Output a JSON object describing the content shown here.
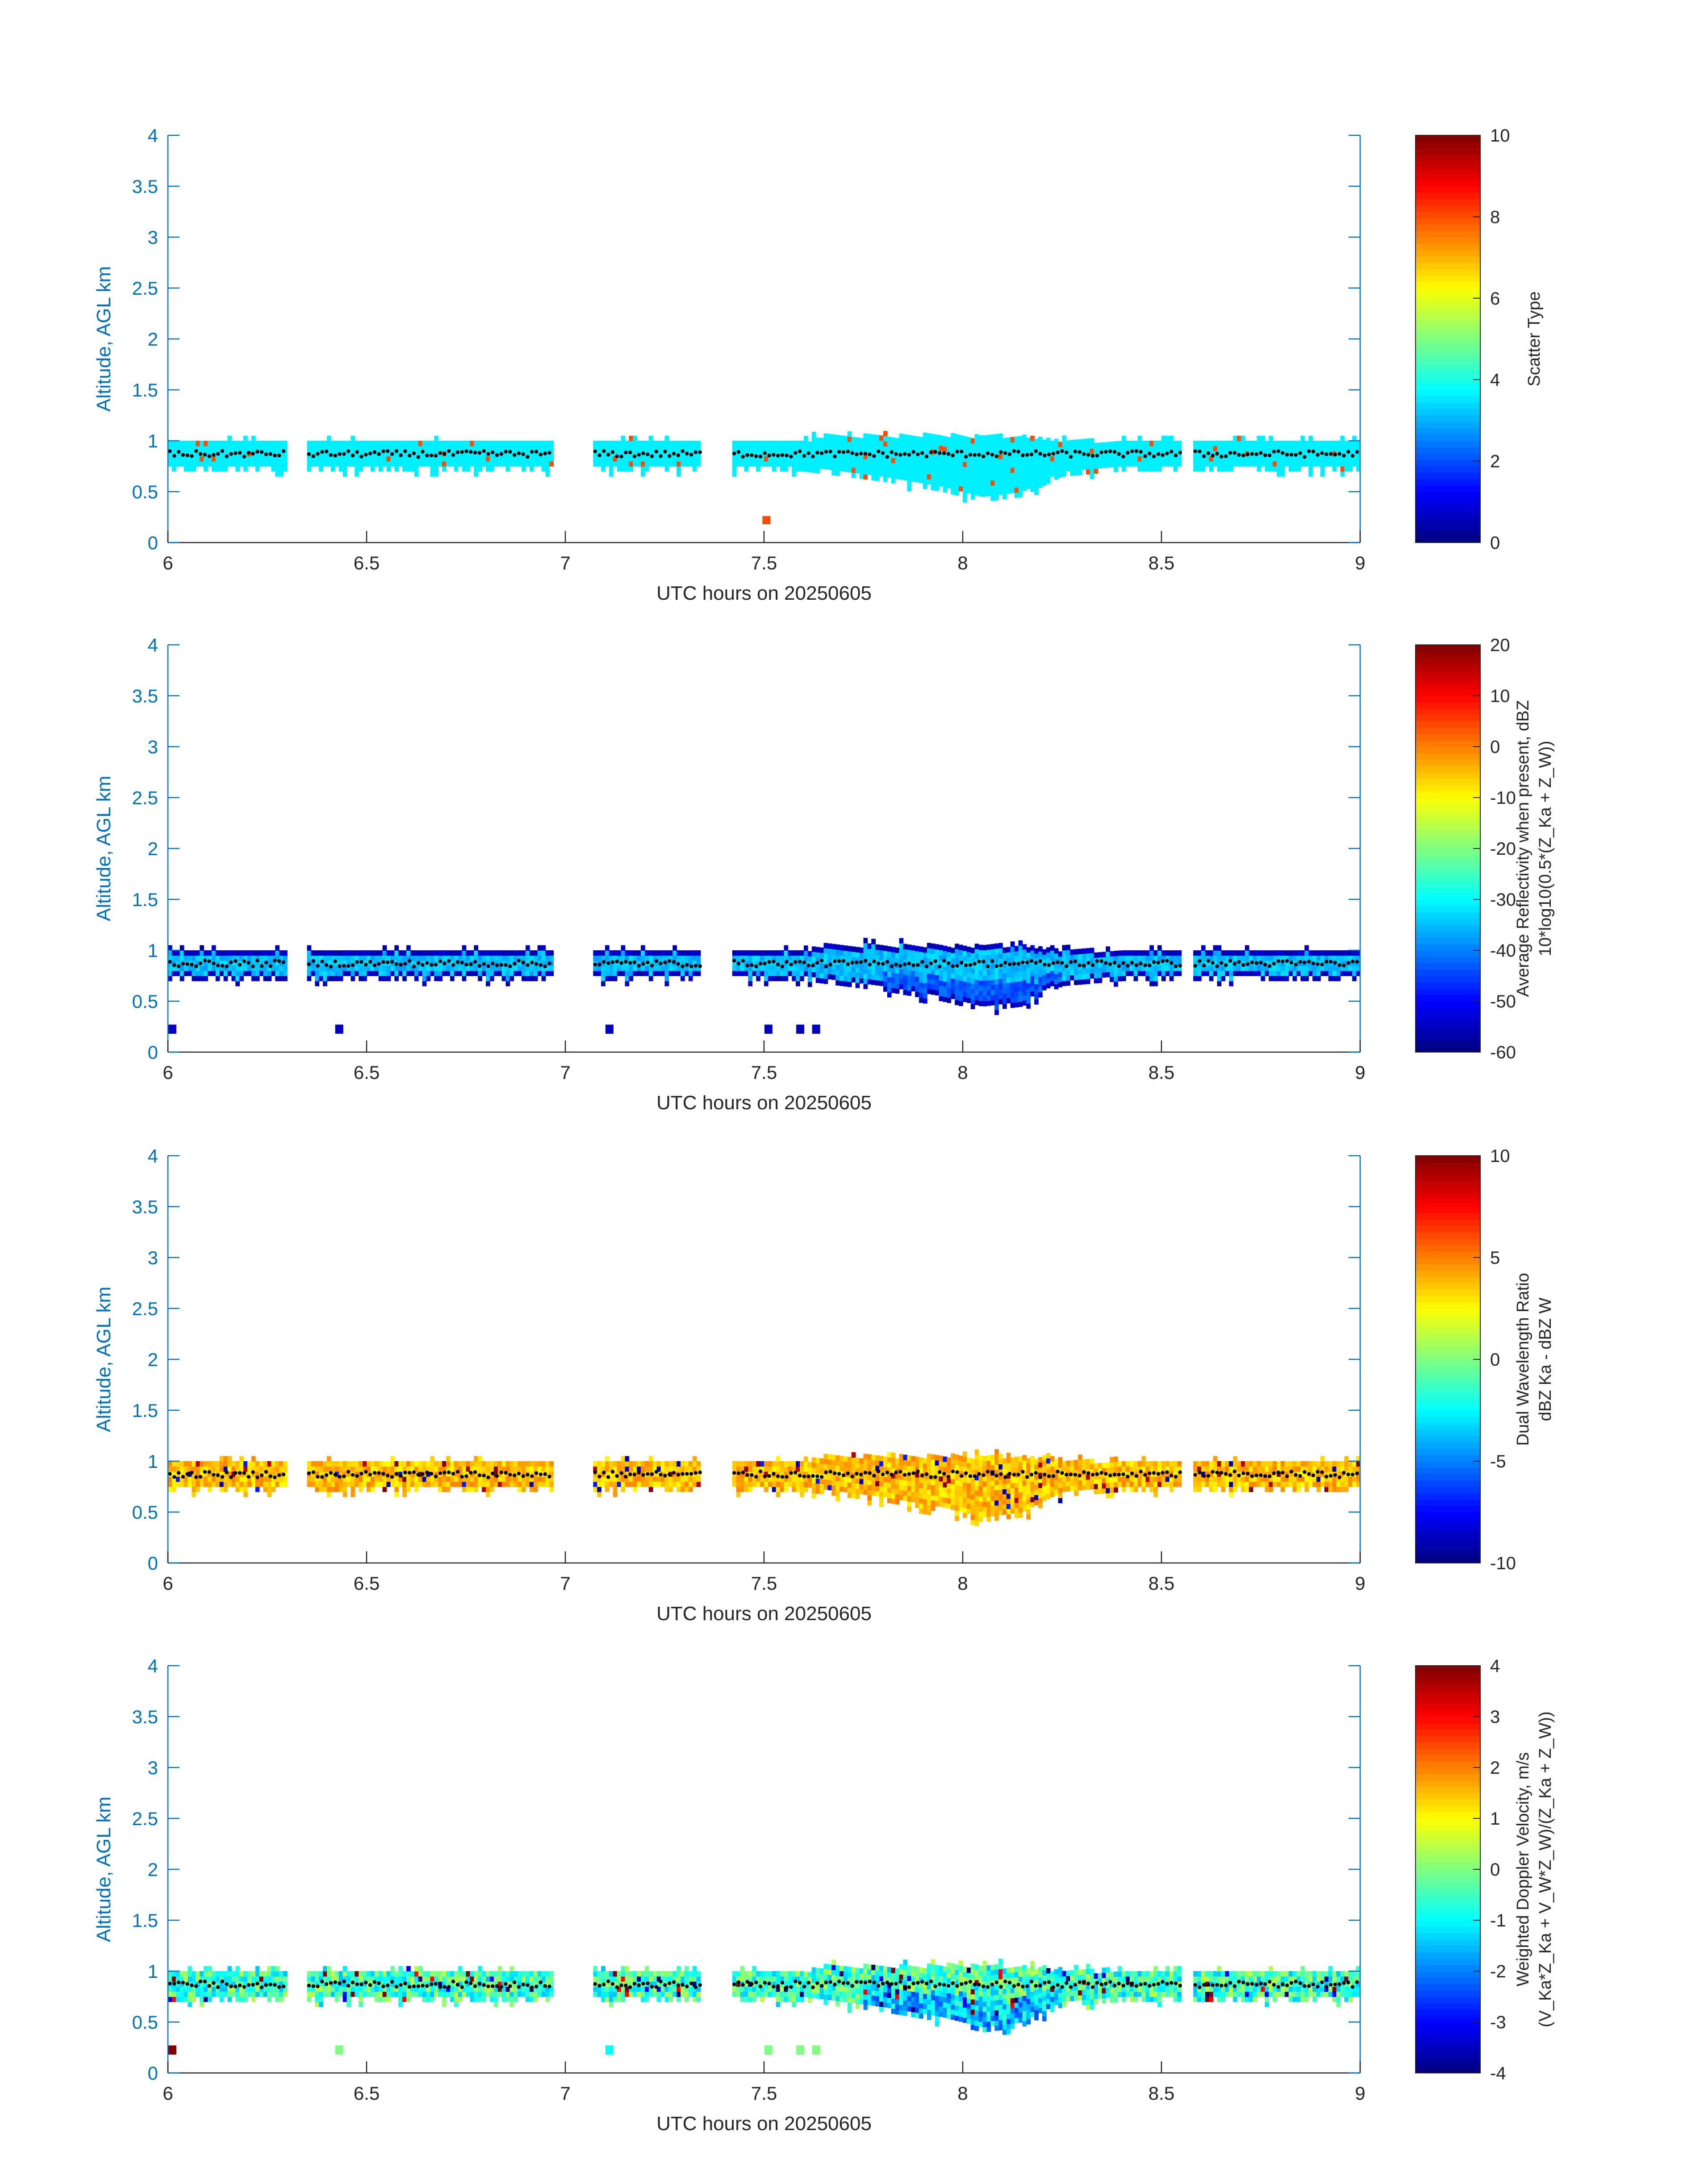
{
  "figure": {
    "axis_color": "#0072BD",
    "text_color": "#262626",
    "cloud_base_marker_color": "#000000",
    "colormap": "jet"
  },
  "chart_data": [
    {
      "type": "heatmap",
      "xlabel": "UTC hours on 20250605",
      "ylabel": "Altitude, AGL km",
      "xlim": [
        6,
        9
      ],
      "ylim": [
        0,
        4
      ],
      "xticks": [
        "6",
        "6.5",
        "7",
        "7.5",
        "8",
        "8.5",
        "9"
      ],
      "yticks": [
        "0",
        "0.5",
        "1",
        "1.5",
        "2",
        "2.5",
        "3",
        "3.5",
        "4"
      ],
      "grid": false,
      "colorbar": {
        "label": "Scatter Type",
        "label_lines": [
          "Scatter Type"
        ],
        "clim": [
          0,
          10
        ],
        "ticks": [
          "0",
          "2",
          "4",
          "6",
          "8",
          "10"
        ]
      },
      "field": {
        "dominant_value": 3.6,
        "min_value": 3.6,
        "max_value": 8.0,
        "isolated_values": [
          {
            "time": 7.505,
            "alt_min": 0.18,
            "alt_max": 0.26,
            "value": 8.0
          }
        ]
      }
    },
    {
      "type": "heatmap",
      "xlabel": "UTC hours on 20250605",
      "ylabel": "Altitude, AGL km",
      "xlim": [
        6,
        9
      ],
      "ylim": [
        0,
        4
      ],
      "xticks": [
        "6",
        "6.5",
        "7",
        "7.5",
        "8",
        "8.5",
        "9"
      ],
      "yticks": [
        "0",
        "0.5",
        "1",
        "1.5",
        "2",
        "2.5",
        "3",
        "3.5",
        "4"
      ],
      "grid": false,
      "colorbar": {
        "label": "Average Reflectivity when present, dBZ 10*log10(0.5*(Z_Ka + Z_W))",
        "label_lines": [
          "Average Reflectivity when present, dBZ",
          "10*log10(0.5*(Z_Ka + Z_W))"
        ],
        "clim": [
          -60,
          20
        ],
        "ticks": [
          "-60",
          "-50",
          "-40",
          "-30",
          "-20",
          "-10",
          "0",
          "10",
          "20"
        ]
      },
      "field": {
        "core_value": -35,
        "edge_value": -55,
        "min_value": -57,
        "max_value": -30,
        "isolated_values": [
          {
            "time": 6.01,
            "alt_min": 0.18,
            "alt_max": 0.27,
            "value": -55
          },
          {
            "time": 6.43,
            "alt_min": 0.18,
            "alt_max": 0.27,
            "value": -55
          },
          {
            "time": 7.11,
            "alt_min": 0.18,
            "alt_max": 0.27,
            "value": -55
          },
          {
            "time": 7.51,
            "alt_min": 0.18,
            "alt_max": 0.27,
            "value": -55
          },
          {
            "time": 7.59,
            "alt_min": 0.18,
            "alt_max": 0.27,
            "value": -55
          },
          {
            "time": 7.63,
            "alt_min": 0.18,
            "alt_max": 0.27,
            "value": -55
          }
        ]
      }
    },
    {
      "type": "heatmap",
      "xlabel": "UTC hours on 20250605",
      "ylabel": "Altitude, AGL km",
      "xlim": [
        6,
        9
      ],
      "ylim": [
        0,
        4
      ],
      "xticks": [
        "6",
        "6.5",
        "7",
        "7.5",
        "8",
        "8.5",
        "9"
      ],
      "yticks": [
        "0",
        "0.5",
        "1",
        "1.5",
        "2",
        "2.5",
        "3",
        "3.5",
        "4"
      ],
      "grid": false,
      "colorbar": {
        "label": "Dual Wavelength Ratio dBZ_Ka - dBZ_W",
        "label_lines": [
          "Dual Wavelength Ratio",
          "dBZ Ka - dBZ W"
        ],
        "clim": [
          -10,
          10
        ],
        "ticks": [
          "-10",
          "-5",
          "0",
          "5",
          "10"
        ]
      },
      "field": {
        "typical_min": 2.5,
        "typical_max": 5,
        "outlier_values": [
          -9,
          -7,
          9,
          10
        ]
      }
    },
    {
      "type": "heatmap",
      "xlabel": "UTC hours on 20250605",
      "ylabel": "Altitude, AGL km",
      "xlim": [
        6,
        9
      ],
      "ylim": [
        0,
        4
      ],
      "xticks": [
        "6",
        "6.5",
        "7",
        "7.5",
        "8",
        "8.5",
        "9"
      ],
      "yticks": [
        "0",
        "0.5",
        "1",
        "1.5",
        "2",
        "2.5",
        "3",
        "3.5",
        "4"
      ],
      "grid": false,
      "colorbar": {
        "label": "Weighted Doppler Velocity, m/s (V_Ka*Z_Ka + V_W*Z_W)/(Z_Ka + Z_W))",
        "label_lines": [
          "Weighted Doppler Velocity, m/s",
          "(V_Ka*Z_Ka + V_W*Z_W)/(Z_Ka + Z_W))"
        ],
        "clim": [
          -4,
          4
        ],
        "ticks": [
          "-4",
          "-3",
          "-2",
          "-1",
          "0",
          "1",
          "2",
          "3",
          "4"
        ]
      },
      "field": {
        "typical_min": -1.5,
        "typical_max": 0.5,
        "outlier_values": [
          -4,
          -3,
          3,
          4
        ],
        "isolated_values": [
          {
            "time": 6.01,
            "alt_min": 0.18,
            "alt_max": 0.27,
            "value": 4
          },
          {
            "time": 6.43,
            "alt_min": 0.18,
            "alt_max": 0.27,
            "value": 0
          },
          {
            "time": 7.11,
            "alt_min": 0.18,
            "alt_max": 0.27,
            "value": -1
          },
          {
            "time": 7.51,
            "alt_min": 0.18,
            "alt_max": 0.27,
            "value": 0
          },
          {
            "time": 7.59,
            "alt_min": 0.18,
            "alt_max": 0.27,
            "value": 0
          },
          {
            "time": 7.63,
            "alt_min": 0.18,
            "alt_max": 0.27,
            "value": 0
          }
        ]
      }
    }
  ],
  "cloud_layer": {
    "time_segments": [
      [
        6.0,
        6.3
      ],
      [
        6.35,
        6.97
      ],
      [
        7.07,
        7.34
      ],
      [
        7.42,
        8.55
      ],
      [
        8.58,
        9.0
      ]
    ],
    "layer_top": [
      {
        "time": 6.0,
        "alt": 1.0
      },
      {
        "time": 7.6,
        "alt": 1.0
      },
      {
        "time": 7.65,
        "alt": 1.05
      },
      {
        "time": 8.15,
        "alt": 1.05
      },
      {
        "time": 8.25,
        "alt": 1.0
      },
      {
        "time": 9.0,
        "alt": 1.0
      }
    ],
    "layer_bottom": [
      {
        "time": 6.0,
        "alt": 0.75
      },
      {
        "time": 7.6,
        "alt": 0.75
      },
      {
        "time": 7.8,
        "alt": 0.65
      },
      {
        "time": 7.95,
        "alt": 0.55
      },
      {
        "time": 8.05,
        "alt": 0.45
      },
      {
        "time": 8.15,
        "alt": 0.5
      },
      {
        "time": 8.25,
        "alt": 0.7
      },
      {
        "time": 8.4,
        "alt": 0.75
      },
      {
        "time": 9.0,
        "alt": 0.75
      }
    ],
    "cloud_base_alt": 0.87
  }
}
